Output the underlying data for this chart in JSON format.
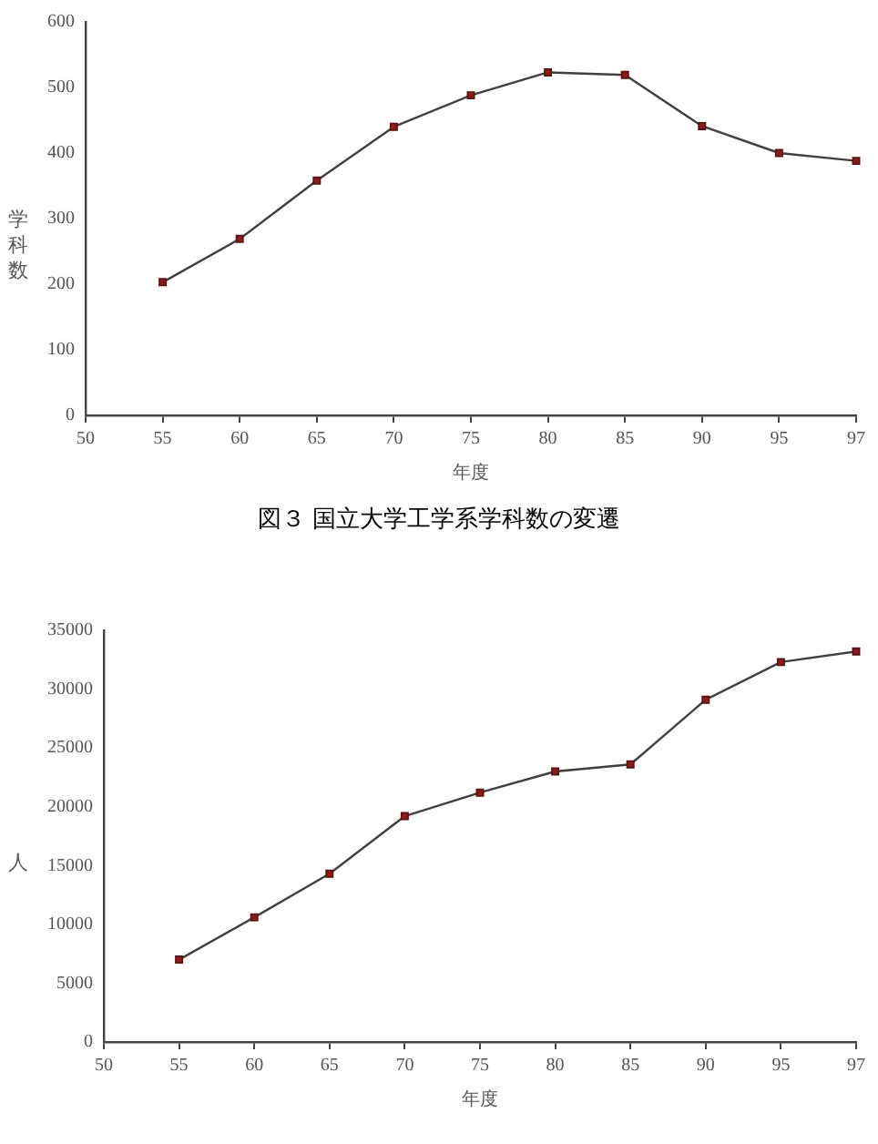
{
  "chart_data": [
    {
      "type": "line",
      "title": "図３ 国立大学工学系学科数の変遷",
      "xlabel": "年度",
      "ylabel": "学科数",
      "categories": [
        "50",
        "55",
        "60",
        "65",
        "70",
        "75",
        "80",
        "85",
        "90",
        "95",
        "97"
      ],
      "series": [
        {
          "color": "#404040",
          "values": [
            null,
            203,
            269,
            358,
            440,
            488,
            523,
            519,
            441,
            400,
            388
          ]
        }
      ],
      "ylim": [
        0,
        600
      ],
      "yticks": [
        0,
        100,
        200,
        300,
        400,
        500,
        600
      ],
      "grid": false,
      "legend": false,
      "marker": "square",
      "line_style": "solid"
    },
    {
      "type": "line",
      "xlabel": "年度",
      "ylabel": "人",
      "categories": [
        "50",
        "55",
        "60",
        "65",
        "70",
        "75",
        "80",
        "85",
        "90",
        "95",
        "97"
      ],
      "series": [
        {
          "color": "#404040",
          "values": [
            null,
            7000,
            10600,
            14300,
            19200,
            21200,
            23000,
            23600,
            29100,
            32300,
            33200
          ]
        }
      ],
      "ylim": [
        0,
        35000
      ],
      "yticks": [
        0,
        5000,
        10000,
        15000,
        20000,
        25000,
        30000,
        35000
      ],
      "grid": false,
      "legend": false,
      "marker": "square",
      "line_style": "solid"
    }
  ]
}
